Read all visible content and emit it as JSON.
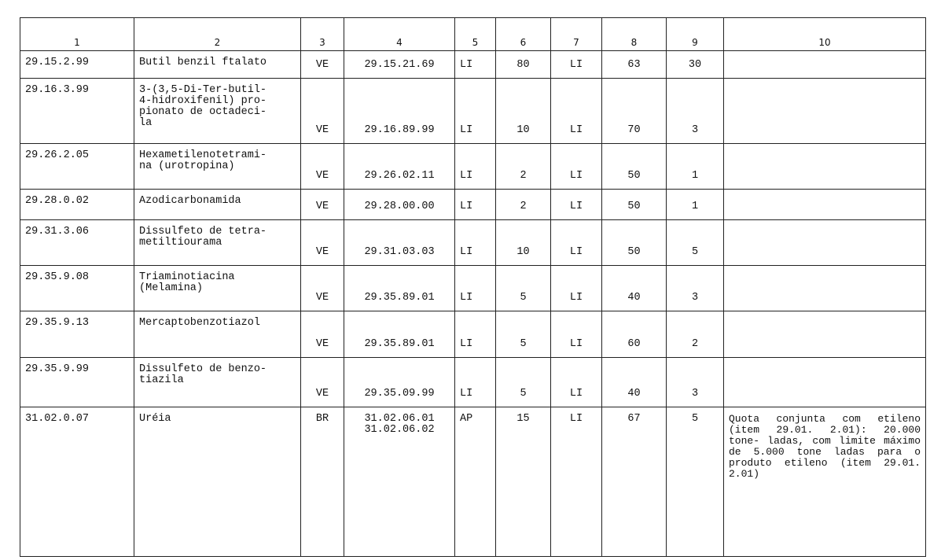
{
  "headers": [
    "1",
    "2",
    "3",
    "4",
    "5",
    "6",
    "7",
    "8",
    "9",
    "10"
  ],
  "rows": [
    [
      "29.15.2.99",
      "Butil benzil ftalato",
      "VE",
      "29.15.21.69",
      "LI",
      "80",
      "LI",
      "63",
      "30",
      ""
    ],
    [
      "29.16.3.99",
      "3-(3,5-Di-Ter-butil-\n4-hidroxifenil) pro-\npionato de octadeci-\nla",
      "VE",
      "29.16.89.99",
      "LI",
      "10",
      "LI",
      "70",
      "3",
      ""
    ],
    [
      "29.26.2.05",
      "Hexametilenotetrami-\nna (urotropina)",
      "VE",
      "29.26.02.11",
      "LI",
      "2",
      "LI",
      "50",
      "1",
      ""
    ],
    [
      "29.28.0.02",
      "Azodicarbonamida",
      "VE",
      "29.28.00.00",
      "LI",
      "2",
      "LI",
      "50",
      "1",
      ""
    ],
    [
      "29.31.3.06",
      "Dissulfeto de tetra-\nmetiltiourama",
      "VE",
      "29.31.03.03",
      "LI",
      "10",
      "LI",
      "50",
      "5",
      ""
    ],
    [
      "29.35.9.08",
      "Triaminotiacina\n(Melamina)",
      "VE",
      "29.35.89.01",
      "LI",
      "5",
      "LI",
      "40",
      "3",
      ""
    ],
    [
      "29.35.9.13",
      "Mercaptobenzotiazol",
      "VE",
      "29.35.89.01",
      "LI",
      "5",
      "LI",
      "60",
      "2",
      ""
    ],
    [
      "29.35.9.99",
      "Dissulfeto de benzo-\ntiazila",
      "VE",
      "29.35.09.99",
      "LI",
      "5",
      "LI",
      "40",
      "3",
      ""
    ],
    [
      "31.02.0.07",
      "Uréia",
      "BR",
      "31.02.06.01\n31.02.06.02",
      "AP",
      "15",
      "LI",
      "67",
      "5",
      "Quota conjunta com etileno (item 29.01. 2.01): 20.000 tone- ladas, com limite máximo de 5.000 tone ladas para o produto etileno (item 29.01. 2.01)"
    ]
  ]
}
